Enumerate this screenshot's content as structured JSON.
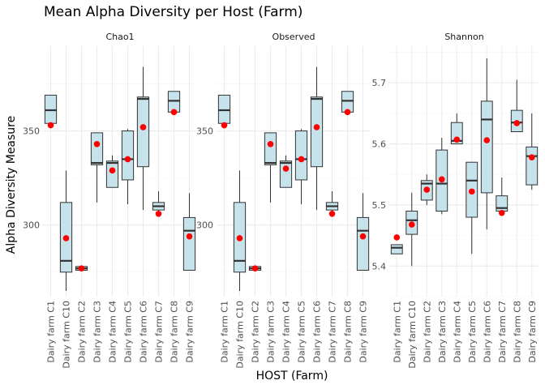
{
  "chart_data": {
    "type": "boxplot",
    "title": "Mean Alpha Diversity per Host (Farm)",
    "xlabel": "HOST (Farm)",
    "ylabel": "Alpha Diversity Measure",
    "categories": [
      "Dairy farm C1",
      "Dairy farm C10",
      "Dairy farm C2",
      "Dairy farm C3",
      "Dairy farm C4",
      "Dairy farm C5",
      "Dairy farm C6",
      "Dairy farm C7",
      "Dairy farm C8",
      "Dairy farm C9"
    ],
    "colors": {
      "box_fill": "#c6e3ec",
      "box_stroke": "#333333",
      "mean_point": "#ff0000",
      "strip_text": "#1a1a1a"
    },
    "mean_marker": "red point",
    "grid": true,
    "facets": [
      {
        "strip": "Chao1",
        "ylim": [
          262,
          395
        ],
        "yticks": [
          300,
          350
        ],
        "boxes": [
          {
            "category": "Dairy farm C1",
            "min": 354,
            "q1": 354,
            "median": 361,
            "q3": 369,
            "max": 369,
            "mean": 353
          },
          {
            "category": "Dairy farm C10",
            "min": 265,
            "q1": 275,
            "median": 281,
            "q3": 312,
            "max": 329,
            "mean": 293
          },
          {
            "category": "Dairy farm C2",
            "min": 276,
            "q1": 276,
            "median": 277,
            "q3": 278,
            "max": 278,
            "mean": 277
          },
          {
            "category": "Dairy farm C3",
            "min": 312,
            "q1": 332,
            "median": 333,
            "q3": 349,
            "max": 349,
            "mean": 343
          },
          {
            "category": "Dairy farm C4",
            "min": 320,
            "q1": 320,
            "median": 333,
            "q3": 334,
            "max": 337,
            "mean": 329
          },
          {
            "category": "Dairy farm C5",
            "min": 311,
            "q1": 324,
            "median": 335,
            "q3": 350,
            "max": 351,
            "mean": 335
          },
          {
            "category": "Dairy farm C6",
            "min": 308,
            "q1": 331,
            "median": 367,
            "q3": 368,
            "max": 384,
            "mean": 352
          },
          {
            "category": "Dairy farm C7",
            "min": 305,
            "q1": 308,
            "median": 310,
            "q3": 312,
            "max": 318,
            "mean": 306
          },
          {
            "category": "Dairy farm C8",
            "min": 360,
            "q1": 360,
            "median": 366,
            "q3": 371,
            "max": 371,
            "mean": 360
          },
          {
            "category": "Dairy farm C9",
            "min": 276,
            "q1": 276,
            "median": 297,
            "q3": 304,
            "max": 317,
            "mean": 294
          }
        ]
      },
      {
        "strip": "Observed",
        "ylim": [
          262,
          395
        ],
        "yticks": [
          300,
          350
        ],
        "boxes": [
          {
            "category": "Dairy farm C1",
            "min": 354,
            "q1": 354,
            "median": 361,
            "q3": 369,
            "max": 369,
            "mean": 353
          },
          {
            "category": "Dairy farm C10",
            "min": 265,
            "q1": 275,
            "median": 281,
            "q3": 312,
            "max": 329,
            "mean": 293
          },
          {
            "category": "Dairy farm C2",
            "min": 276,
            "q1": 276,
            "median": 277,
            "q3": 278,
            "max": 278,
            "mean": 277
          },
          {
            "category": "Dairy farm C3",
            "min": 312,
            "q1": 332,
            "median": 333,
            "q3": 349,
            "max": 349,
            "mean": 343
          },
          {
            "category": "Dairy farm C4",
            "min": 320,
            "q1": 320,
            "median": 333,
            "q3": 334,
            "max": 337,
            "mean": 330
          },
          {
            "category": "Dairy farm C5",
            "min": 311,
            "q1": 324,
            "median": 335,
            "q3": 350,
            "max": 351,
            "mean": 335
          },
          {
            "category": "Dairy farm C6",
            "min": 308,
            "q1": 331,
            "median": 367,
            "q3": 368,
            "max": 384,
            "mean": 352
          },
          {
            "category": "Dairy farm C7",
            "min": 305,
            "q1": 308,
            "median": 310,
            "q3": 312,
            "max": 318,
            "mean": 306
          },
          {
            "category": "Dairy farm C8",
            "min": 360,
            "q1": 360,
            "median": 366,
            "q3": 371,
            "max": 371,
            "mean": 360
          },
          {
            "category": "Dairy farm C9",
            "min": 276,
            "q1": 276,
            "median": 297,
            "q3": 304,
            "max": 317,
            "mean": 294
          }
        ]
      },
      {
        "strip": "Shannon",
        "ylim": [
          5.35,
          5.76
        ],
        "yticks": [
          5.4,
          5.5,
          5.6,
          5.7
        ],
        "boxes": [
          {
            "category": "Dairy farm C1",
            "min": 5.42,
            "q1": 5.42,
            "median": 5.43,
            "q3": 5.435,
            "max": 5.435,
            "mean": 5.447
          },
          {
            "category": "Dairy farm C10",
            "min": 5.4,
            "q1": 5.452,
            "median": 5.475,
            "q3": 5.49,
            "max": 5.52,
            "mean": 5.468
          },
          {
            "category": "Dairy farm C2",
            "min": 5.5,
            "q1": 5.508,
            "median": 5.535,
            "q3": 5.54,
            "max": 5.55,
            "mean": 5.525
          },
          {
            "category": "Dairy farm C3",
            "min": 5.485,
            "q1": 5.49,
            "median": 5.535,
            "q3": 5.59,
            "max": 5.61,
            "mean": 5.542
          },
          {
            "category": "Dairy farm C4",
            "min": 5.6,
            "q1": 5.6,
            "median": 5.605,
            "q3": 5.635,
            "max": 5.65,
            "mean": 5.607
          },
          {
            "category": "Dairy farm C5",
            "min": 5.42,
            "q1": 5.48,
            "median": 5.54,
            "q3": 5.57,
            "max": 5.57,
            "mean": 5.522
          },
          {
            "category": "Dairy farm C6",
            "min": 5.46,
            "q1": 5.52,
            "median": 5.64,
            "q3": 5.67,
            "max": 5.74,
            "mean": 5.606
          },
          {
            "category": "Dairy farm C7",
            "min": 5.485,
            "q1": 5.49,
            "median": 5.495,
            "q3": 5.515,
            "max": 5.545,
            "mean": 5.487
          },
          {
            "category": "Dairy farm C8",
            "min": 5.62,
            "q1": 5.62,
            "median": 5.635,
            "q3": 5.655,
            "max": 5.705,
            "mean": 5.634
          },
          {
            "category": "Dairy farm C9",
            "min": 5.525,
            "q1": 5.533,
            "median": 5.58,
            "q3": 5.595,
            "max": 5.65,
            "mean": 5.578
          }
        ]
      }
    ]
  }
}
